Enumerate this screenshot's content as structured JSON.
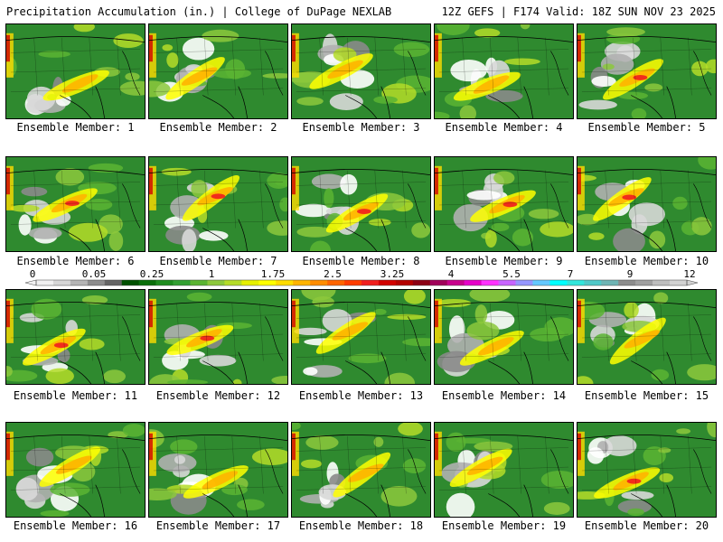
{
  "header": {
    "left": "Precipitation Accumulation (in.) | College of DuPage NEXLAB",
    "right": "12Z GEFS | F174 Valid: 18Z SUN NOV 23 2025"
  },
  "member_label_prefix": "Ensemble Member: ",
  "members": [
    "1",
    "2",
    "3",
    "4",
    "5",
    "6",
    "7",
    "8",
    "9",
    "10",
    "11",
    "12",
    "13",
    "14",
    "15",
    "16",
    "17",
    "18",
    "19",
    "20"
  ],
  "colorbar": {
    "labels": [
      "0",
      "0.05",
      "0.25",
      "1",
      "1.75",
      "2.5",
      "3.25",
      "4",
      "5.5",
      "7",
      "9",
      "12"
    ],
    "colors": [
      "#f0f0f0",
      "#d6d6d6",
      "#b4b4b4",
      "#8c8c8c",
      "#646464",
      "#005000",
      "#0a6e0a",
      "#1e8c1e",
      "#32a032",
      "#5ab432",
      "#8cc83c",
      "#b4dc28",
      "#e6f000",
      "#ffff00",
      "#ffdc00",
      "#ffb400",
      "#ff8c00",
      "#ff6400",
      "#ff3c00",
      "#f01e1e",
      "#d20000",
      "#b40000",
      "#8c0014",
      "#a0005a",
      "#c8008c",
      "#e600c8",
      "#ff32ff",
      "#c864ff",
      "#9696ff",
      "#64c8ff",
      "#00ffff",
      "#32e6dc",
      "#50c8c8",
      "#6eb4b4",
      "#8c8c8c",
      "#a0a0a0",
      "#bebebe",
      "#d2d2d2"
    ]
  }
}
